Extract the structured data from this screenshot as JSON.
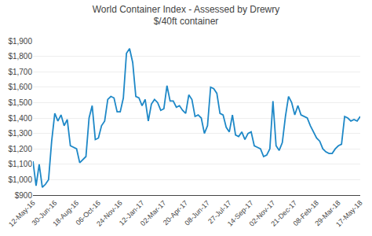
{
  "chart_data": {
    "type": "line",
    "title": "World Container Index - Assessed by Drewry",
    "subtitle": "$/40ft container",
    "color": "#1E88C7",
    "categories": [
      "12-May-16",
      null,
      null,
      null,
      null,
      null,
      null,
      "30-Jun-16",
      null,
      null,
      null,
      null,
      null,
      null,
      "18-Aug-16",
      null,
      null,
      null,
      null,
      null,
      null,
      "06-Oct-16",
      null,
      null,
      null,
      null,
      null,
      null,
      "24-Nov-16",
      null,
      null,
      null,
      null,
      null,
      null,
      "12-Jan-17",
      null,
      null,
      null,
      null,
      null,
      null,
      "02-Mar-17",
      null,
      null,
      null,
      null,
      null,
      null,
      "20-Apr-17",
      null,
      null,
      null,
      null,
      null,
      null,
      "08-Jun-17",
      null,
      null,
      null,
      null,
      null,
      null,
      "27-Jul-17",
      null,
      null,
      null,
      null,
      null,
      null,
      "14-Sep-17",
      null,
      null,
      null,
      null,
      null,
      null,
      "02-Nov-17",
      null,
      null,
      null,
      null,
      null,
      null,
      "21-Dec-17",
      null,
      null,
      null,
      null,
      null,
      null,
      "08-Feb-18",
      null,
      null,
      null,
      null,
      null,
      null,
      "29-Mar-18",
      null,
      null,
      null,
      null,
      null,
      null,
      "17-May-18"
    ],
    "values": [
      1120,
      960,
      1100,
      950,
      970,
      1000,
      1250,
      1430,
      1380,
      1420,
      1350,
      1390,
      1220,
      1210,
      1200,
      1110,
      1130,
      1150,
      1400,
      1480,
      1260,
      1270,
      1350,
      1380,
      1520,
      1540,
      1530,
      1440,
      1440,
      1530,
      1820,
      1850,
      1760,
      1540,
      1530,
      1480,
      1520,
      1380,
      1490,
      1520,
      1500,
      1450,
      1460,
      1610,
      1510,
      1510,
      1470,
      1480,
      1450,
      1430,
      1550,
      1520,
      1410,
      1420,
      1400,
      1300,
      1350,
      1600,
      1590,
      1560,
      1430,
      1420,
      1340,
      1310,
      1420,
      1290,
      1280,
      1310,
      1260,
      1300,
      1310,
      1220,
      1210,
      1200,
      1150,
      1160,
      1200,
      1510,
      1220,
      1190,
      1240,
      1410,
      1540,
      1500,
      1420,
      1480,
      1420,
      1410,
      1400,
      1350,
      1310,
      1270,
      1250,
      1200,
      1180,
      1170,
      1170,
      1200,
      1220,
      1230,
      1410,
      1400,
      1380,
      1390,
      1380,
      1410
    ],
    "ylim": [
      900,
      1900
    ],
    "yticks": [
      {
        "value": 900,
        "label": "$900"
      },
      {
        "value": 1000,
        "label": "$1,000"
      },
      {
        "value": 1100,
        "label": "$1,100"
      },
      {
        "value": 1200,
        "label": "$1,200"
      },
      {
        "value": 1300,
        "label": "$1,300"
      },
      {
        "value": 1400,
        "label": "$1,400"
      },
      {
        "value": 1500,
        "label": "$1,500"
      },
      {
        "value": 1600,
        "label": "$1,600"
      },
      {
        "value": 1700,
        "label": "$1,700"
      },
      {
        "value": 1800,
        "label": "$1,800"
      },
      {
        "value": 1900,
        "label": "$1,900"
      }
    ],
    "grid": true
  }
}
